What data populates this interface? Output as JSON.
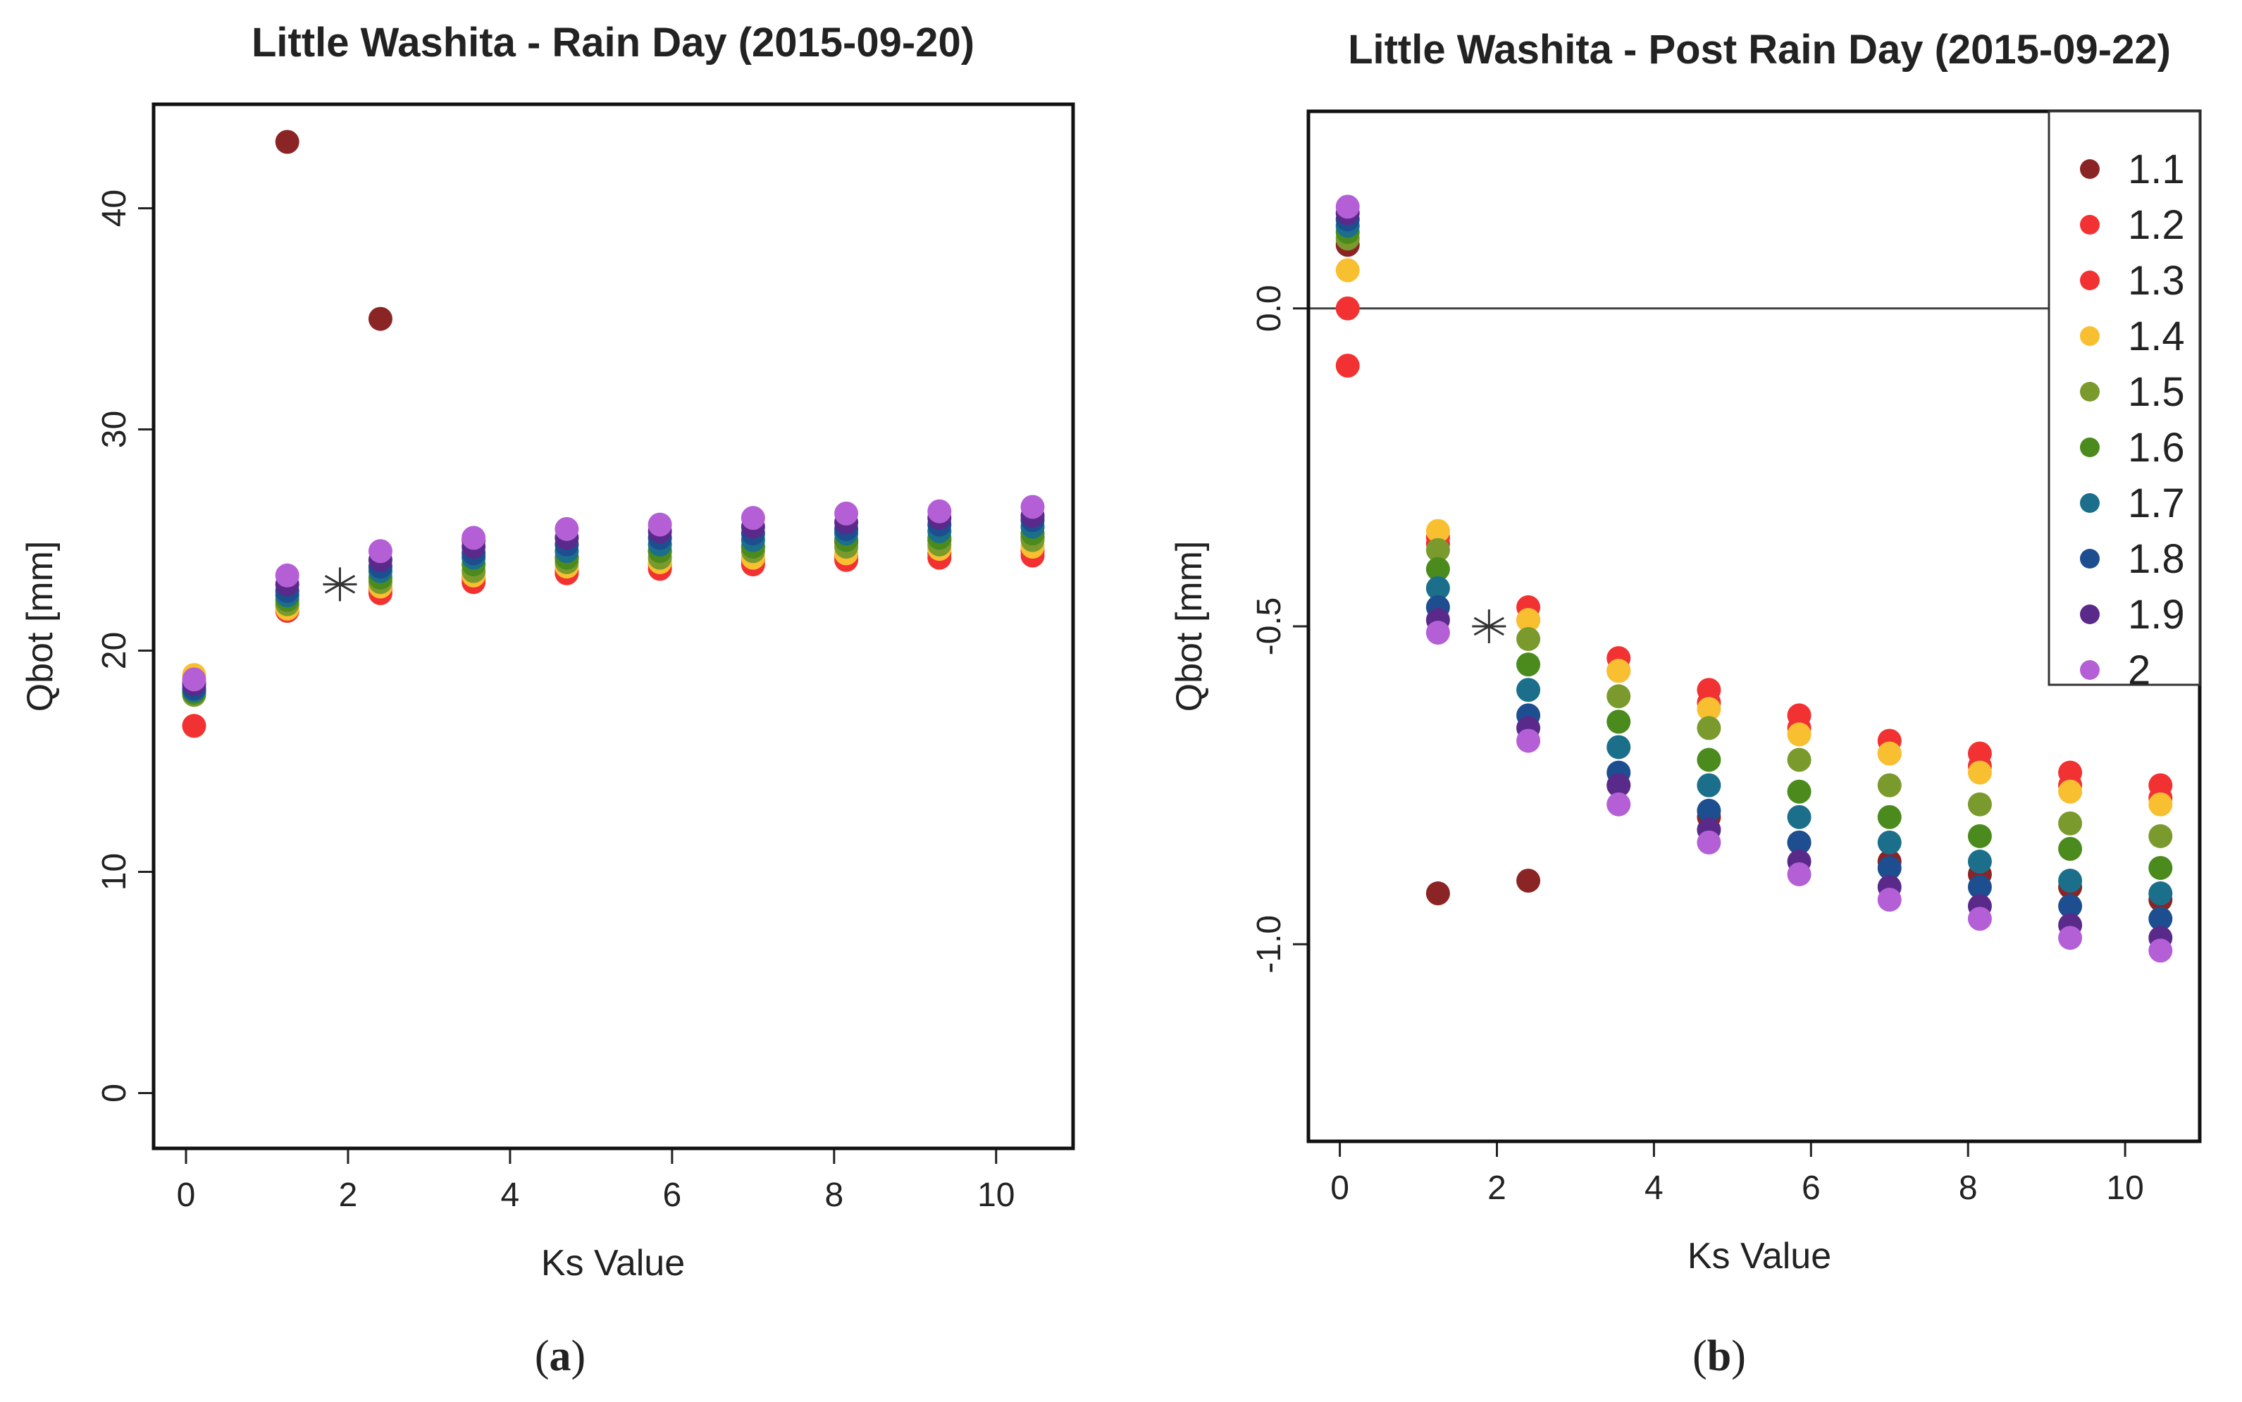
{
  "chart_data": [
    {
      "type": "scatter",
      "title": "Little Washita - Rain Day (2015-09-20)",
      "xlabel": "Ks Value",
      "ylabel": "Qbot [mm]",
      "xlim": [
        -0.4,
        10.95
      ],
      "ylim": [
        -2.5,
        44.7
      ],
      "xticks": [
        0,
        2,
        4,
        6,
        8,
        10
      ],
      "yticks": [
        0,
        10,
        20,
        30,
        40
      ],
      "caption_label": "a",
      "reference_marker": {
        "x": 1.9,
        "y": 23.0,
        "symbol": "asterisk"
      },
      "x": [
        0.1,
        1.25,
        2.4,
        3.55,
        4.7,
        5.85,
        7.0,
        8.15,
        9.3,
        10.45
      ],
      "series": [
        {
          "name": "1.1",
          "color": "#8B2525",
          "values": [
            18.5,
            43.0,
            35.0,
            25.0,
            24.2,
            24.5,
            24.7,
            24.9,
            25.0,
            25.1
          ]
        },
        {
          "name": "1.2",
          "color": "#F23232",
          "values": [
            16.6,
            21.8,
            22.6,
            23.1,
            23.5,
            23.7,
            23.9,
            24.1,
            24.2,
            24.3
          ]
        },
        {
          "name": "1.3",
          "color": "#F23232",
          "values": [
            18.2,
            22.0,
            22.8,
            23.3,
            23.6,
            23.9,
            24.1,
            24.3,
            24.4,
            24.5
          ]
        },
        {
          "name": "1.4",
          "color": "#F8C030",
          "values": [
            18.9,
            21.9,
            22.9,
            23.4,
            23.8,
            24.0,
            24.2,
            24.4,
            24.6,
            24.7
          ]
        },
        {
          "name": "1.5",
          "color": "#7A9A2E",
          "values": [
            18.0,
            22.1,
            23.1,
            23.6,
            24.0,
            24.2,
            24.5,
            24.7,
            24.8,
            25.0
          ]
        },
        {
          "name": "1.6",
          "color": "#4B8B1E",
          "values": [
            18.1,
            22.3,
            23.3,
            23.9,
            24.2,
            24.5,
            24.7,
            25.0,
            25.1,
            25.3
          ]
        },
        {
          "name": "1.7",
          "color": "#1B6F8A",
          "values": [
            18.2,
            22.5,
            23.6,
            24.2,
            24.5,
            24.8,
            25.0,
            25.3,
            25.4,
            25.6
          ]
        },
        {
          "name": "1.8",
          "color": "#1D4E8F",
          "values": [
            18.3,
            22.7,
            23.8,
            24.4,
            24.8,
            25.1,
            25.3,
            25.5,
            25.7,
            25.9
          ]
        },
        {
          "name": "1.9",
          "color": "#5A2A8A",
          "values": [
            18.5,
            23.0,
            24.1,
            24.7,
            25.1,
            25.4,
            25.6,
            25.8,
            26.0,
            26.1
          ]
        },
        {
          "name": "2",
          "color": "#B45FD6",
          "values": [
            18.7,
            23.4,
            24.5,
            25.1,
            25.5,
            25.7,
            26.0,
            26.2,
            26.3,
            26.5
          ]
        }
      ]
    },
    {
      "type": "scatter",
      "title": "Little Washita - Post Rain Day (2015-09-22)",
      "xlabel": "Ks Value",
      "ylabel": "Qbot [mm]",
      "xlim": [
        -0.4,
        10.95
      ],
      "ylim": [
        -1.31,
        0.31
      ],
      "xticks": [
        0,
        2,
        4,
        6,
        8,
        10
      ],
      "yticks": [
        -1.0,
        -0.5,
        0.0
      ],
      "ytick_labels": [
        "-1.0",
        "-0.5",
        "0.0"
      ],
      "hline": 0.0,
      "legend_position": "top-right",
      "caption_label": "b",
      "reference_marker": {
        "x": 1.9,
        "y": -0.5,
        "symbol": "asterisk"
      },
      "x": [
        0.1,
        1.25,
        2.4,
        3.55,
        4.7,
        5.85,
        7.0,
        8.15,
        9.3,
        10.45
      ],
      "series": [
        {
          "name": "1.1",
          "color": "#8B2525",
          "values": [
            0.1,
            -0.92,
            -0.9,
            -0.75,
            -0.8,
            -0.84,
            -0.87,
            -0.89,
            -0.91,
            -0.93
          ]
        },
        {
          "name": "1.2",
          "color": "#F23232",
          "values": [
            0.0,
            -0.36,
            -0.47,
            -0.55,
            -0.6,
            -0.64,
            -0.68,
            -0.7,
            -0.73,
            -0.75
          ]
        },
        {
          "name": "1.3",
          "color": "#F23232",
          "values": [
            -0.09,
            -0.37,
            -0.49,
            -0.57,
            -0.62,
            -0.66,
            -0.7,
            -0.72,
            -0.75,
            -0.77
          ]
        },
        {
          "name": "1.4",
          "color": "#F8C030",
          "values": [
            0.06,
            -0.35,
            -0.49,
            -0.57,
            -0.63,
            -0.67,
            -0.7,
            -0.73,
            -0.76,
            -0.78
          ]
        },
        {
          "name": "1.5",
          "color": "#7A9A2E",
          "values": [
            0.11,
            -0.38,
            -0.52,
            -0.61,
            -0.66,
            -0.71,
            -0.75,
            -0.78,
            -0.81,
            -0.83
          ]
        },
        {
          "name": "1.6",
          "color": "#4B8B1E",
          "values": [
            0.12,
            -0.41,
            -0.56,
            -0.65,
            -0.71,
            -0.76,
            -0.8,
            -0.83,
            -0.85,
            -0.88
          ]
        },
        {
          "name": "1.7",
          "color": "#1B6F8A",
          "values": [
            0.13,
            -0.44,
            -0.6,
            -0.69,
            -0.75,
            -0.8,
            -0.84,
            -0.87,
            -0.9,
            -0.92
          ]
        },
        {
          "name": "1.8",
          "color": "#1D4E8F",
          "values": [
            0.14,
            -0.47,
            -0.64,
            -0.73,
            -0.79,
            -0.84,
            -0.88,
            -0.91,
            -0.94,
            -0.96
          ]
        },
        {
          "name": "1.9",
          "color": "#5A2A8A",
          "values": [
            0.15,
            -0.49,
            -0.66,
            -0.75,
            -0.82,
            -0.87,
            -0.91,
            -0.94,
            -0.97,
            -0.99
          ]
        },
        {
          "name": "2",
          "color": "#B45FD6",
          "values": [
            0.16,
            -0.51,
            -0.68,
            -0.78,
            -0.84,
            -0.89,
            -0.93,
            -0.96,
            -0.99,
            -1.01
          ]
        }
      ]
    }
  ]
}
